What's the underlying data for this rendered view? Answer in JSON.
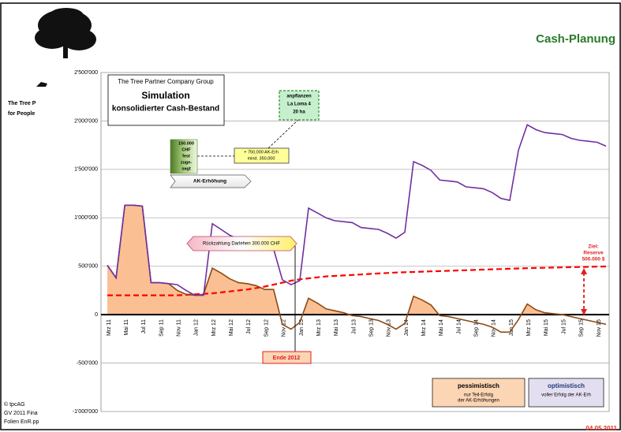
{
  "header": {
    "title": "Cash-Planung",
    "company_lines": [
      "The Tree P",
      "for People"
    ],
    "footer_lines": [
      "© tpcAG",
      "GV 2011 Fina",
      "Folien EnR.pp"
    ],
    "date": "04.05.2011"
  },
  "chart_data": {
    "type": "line",
    "title_box": {
      "company": "The Tree Partner Company Group",
      "title": "Simulation",
      "subtitle": "konsolidierter Cash-Bestand"
    },
    "categories": [
      "Mrz 11",
      null,
      "Mai 11",
      null,
      "Jul 11",
      null,
      "Sep 11",
      null,
      "Nov 11",
      null,
      "Jan 12",
      null,
      "Mrz 12",
      null,
      "Mai 12",
      null,
      "Jul 12",
      null,
      "Sep 12",
      null,
      "Nov 12",
      null,
      "Jan 13",
      null,
      "Mrz 13",
      null,
      "Mai 13",
      null,
      "Jul 13",
      null,
      "Sep 13",
      null,
      "Nov 13",
      null,
      "Jan 14",
      null,
      "Mrz 14",
      null,
      "Mai 14",
      null,
      "Jul 14",
      null,
      "Sep 14",
      null,
      "Nov 14",
      null,
      "Jan 15",
      null,
      "Mrz 15",
      null,
      "Mai 15",
      null,
      "Jul 15",
      null,
      "Sep 15",
      null,
      "Nov 15",
      null
    ],
    "series": [
      {
        "name": "optimistisch",
        "legend_lines": [
          "voller  Erfolg der AK-Erh"
        ],
        "color": "#7030a0",
        "legend_fill": "#e4dff0",
        "values": [
          510000,
          380000,
          1130000,
          1130000,
          1120000,
          330000,
          330000,
          320000,
          310000,
          250000,
          200000,
          200000,
          940000,
          880000,
          820000,
          780000,
          740000,
          720000,
          700000,
          680000,
          360000,
          310000,
          350000,
          1100000,
          1050000,
          1000000,
          970000,
          960000,
          950000,
          900000,
          890000,
          880000,
          840000,
          790000,
          850000,
          1580000,
          1540000,
          1490000,
          1390000,
          1380000,
          1370000,
          1320000,
          1310000,
          1300000,
          1260000,
          1200000,
          1180000,
          1700000,
          1960000,
          1910000,
          1880000,
          1870000,
          1860000,
          1820000,
          1800000,
          1790000,
          1780000,
          1740000
        ]
      },
      {
        "name": "pessimistisch",
        "legend_lines": [
          "nur Teil-Erfolg",
          "der AK-Erhöhungen"
        ],
        "color": "#8c4a14",
        "area_color": "#fbbf94",
        "legend_fill": "#fcd5b4",
        "values": [
          510000,
          380000,
          1130000,
          1130000,
          1120000,
          330000,
          330000,
          320000,
          250000,
          210000,
          200000,
          210000,
          480000,
          430000,
          370000,
          330000,
          320000,
          300000,
          260000,
          260000,
          -100000,
          -150000,
          -80000,
          170000,
          120000,
          60000,
          40000,
          20000,
          -10000,
          -20000,
          -40000,
          -60000,
          -100000,
          -150000,
          -90000,
          190000,
          150000,
          100000,
          -10000,
          -20000,
          -40000,
          -60000,
          -80000,
          -100000,
          -130000,
          -180000,
          -180000,
          -50000,
          110000,
          50000,
          20000,
          10000,
          0,
          -20000,
          -40000,
          -60000,
          -80000,
          -100000
        ]
      }
    ],
    "target": {
      "color": "#ff0000",
      "values": [
        200000,
        200000,
        200000,
        200000,
        200000,
        200000,
        200000,
        200000,
        200000,
        205000,
        210000,
        215000,
        220000,
        230000,
        240000,
        250000,
        260000,
        275000,
        290000,
        310000,
        330000,
        350000,
        365000,
        375000,
        385000,
        395000,
        400000,
        405000,
        410000,
        415000,
        420000,
        425000,
        430000,
        435000,
        438000,
        441000,
        444000,
        447000,
        450000,
        453000,
        456000,
        459000,
        462000,
        465000,
        468000,
        471000,
        474000,
        477000,
        480000,
        482000,
        484000,
        486000,
        488000,
        490000,
        492000,
        494000,
        496000,
        498000
      ]
    },
    "ylim": [
      -1000000,
      2500000
    ],
    "yticks": [
      {
        "value": -1000000,
        "label": "-1'000'000"
      },
      {
        "value": -500000,
        "label": "-500'000"
      },
      0,
      {
        "value": 500000,
        "label": "500'000"
      },
      {
        "value": 1000000,
        "label": "1'000'000"
      },
      {
        "value": 1500000,
        "label": "1'500'000"
      },
      {
        "value": 2000000,
        "label": "2'000'000"
      },
      {
        "value": 2500000,
        "label": "2'500'000"
      }
    ],
    "grid": true,
    "annotations": {
      "la_loma": [
        "anpflanzen",
        "La Loma 4",
        "20 ha"
      ],
      "fest_zugesagt": [
        "150.000",
        "CHF",
        "fest",
        "zuge-",
        "sagt"
      ],
      "ak_erh_box": [
        "+ 750,000 AK-Erh",
        "mind. 350,000"
      ],
      "ak_erhoehung": "AK-Erhöhung",
      "rueckzahlung": "Rückzahlung Darlehen 300.000 CHF",
      "ende_2012": "Ende 2012",
      "ziel": [
        "Ziel:",
        "Reserve",
        "500.000 $"
      ]
    }
  }
}
